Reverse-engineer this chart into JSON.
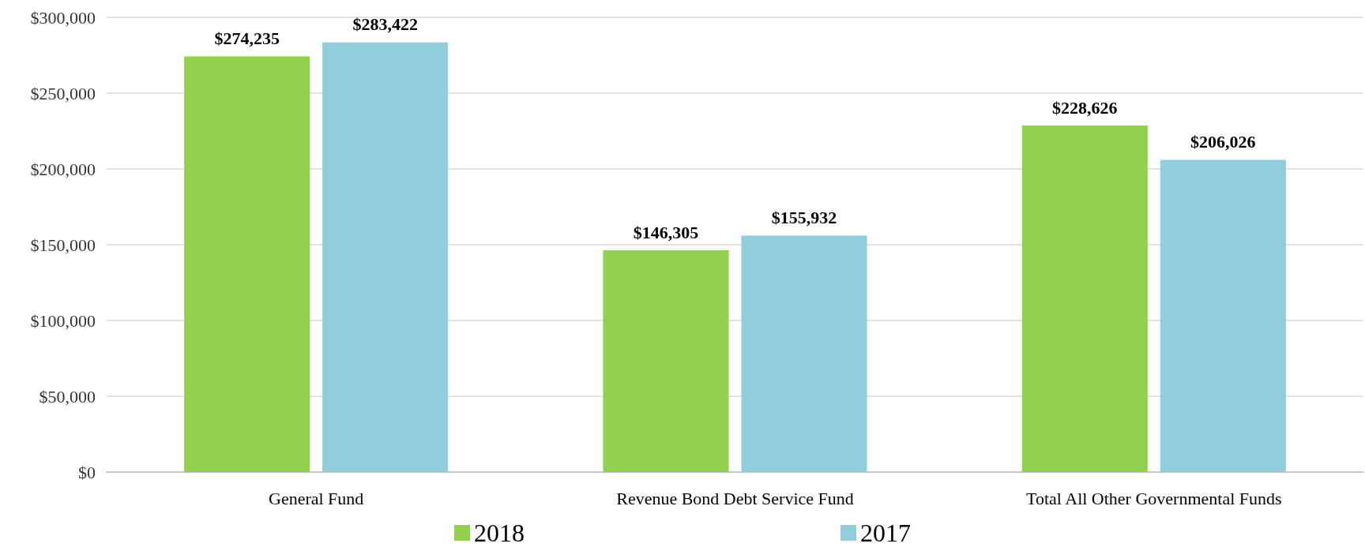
{
  "chart_data": {
    "type": "bar",
    "categories": [
      "General Fund",
      "Revenue Bond Debt Service Fund",
      "Total All Other Governmental Funds"
    ],
    "series": [
      {
        "name": "2018",
        "color": "#92d050",
        "values": [
          274235,
          146305,
          228626
        ],
        "value_labels": [
          "$274,235",
          "$146,305",
          "$228,626"
        ]
      },
      {
        "name": "2017",
        "color": "#92cddc",
        "values": [
          283422,
          155932,
          206026
        ],
        "value_labels": [
          "$283,422",
          "$155,932",
          "$206,026"
        ]
      }
    ],
    "ylim": [
      0,
      300000
    ],
    "yticks": [
      {
        "value": 0,
        "label": "$0"
      },
      {
        "value": 50000,
        "label": "$50,000"
      },
      {
        "value": 100000,
        "label": "$100,000"
      },
      {
        "value": 150000,
        "label": "$150,000"
      },
      {
        "value": 200000,
        "label": "$200,000"
      },
      {
        "value": 250000,
        "label": "$250,000"
      },
      {
        "value": 300000,
        "label": "$300,000"
      }
    ],
    "grid": "y",
    "legend": "bottom"
  }
}
